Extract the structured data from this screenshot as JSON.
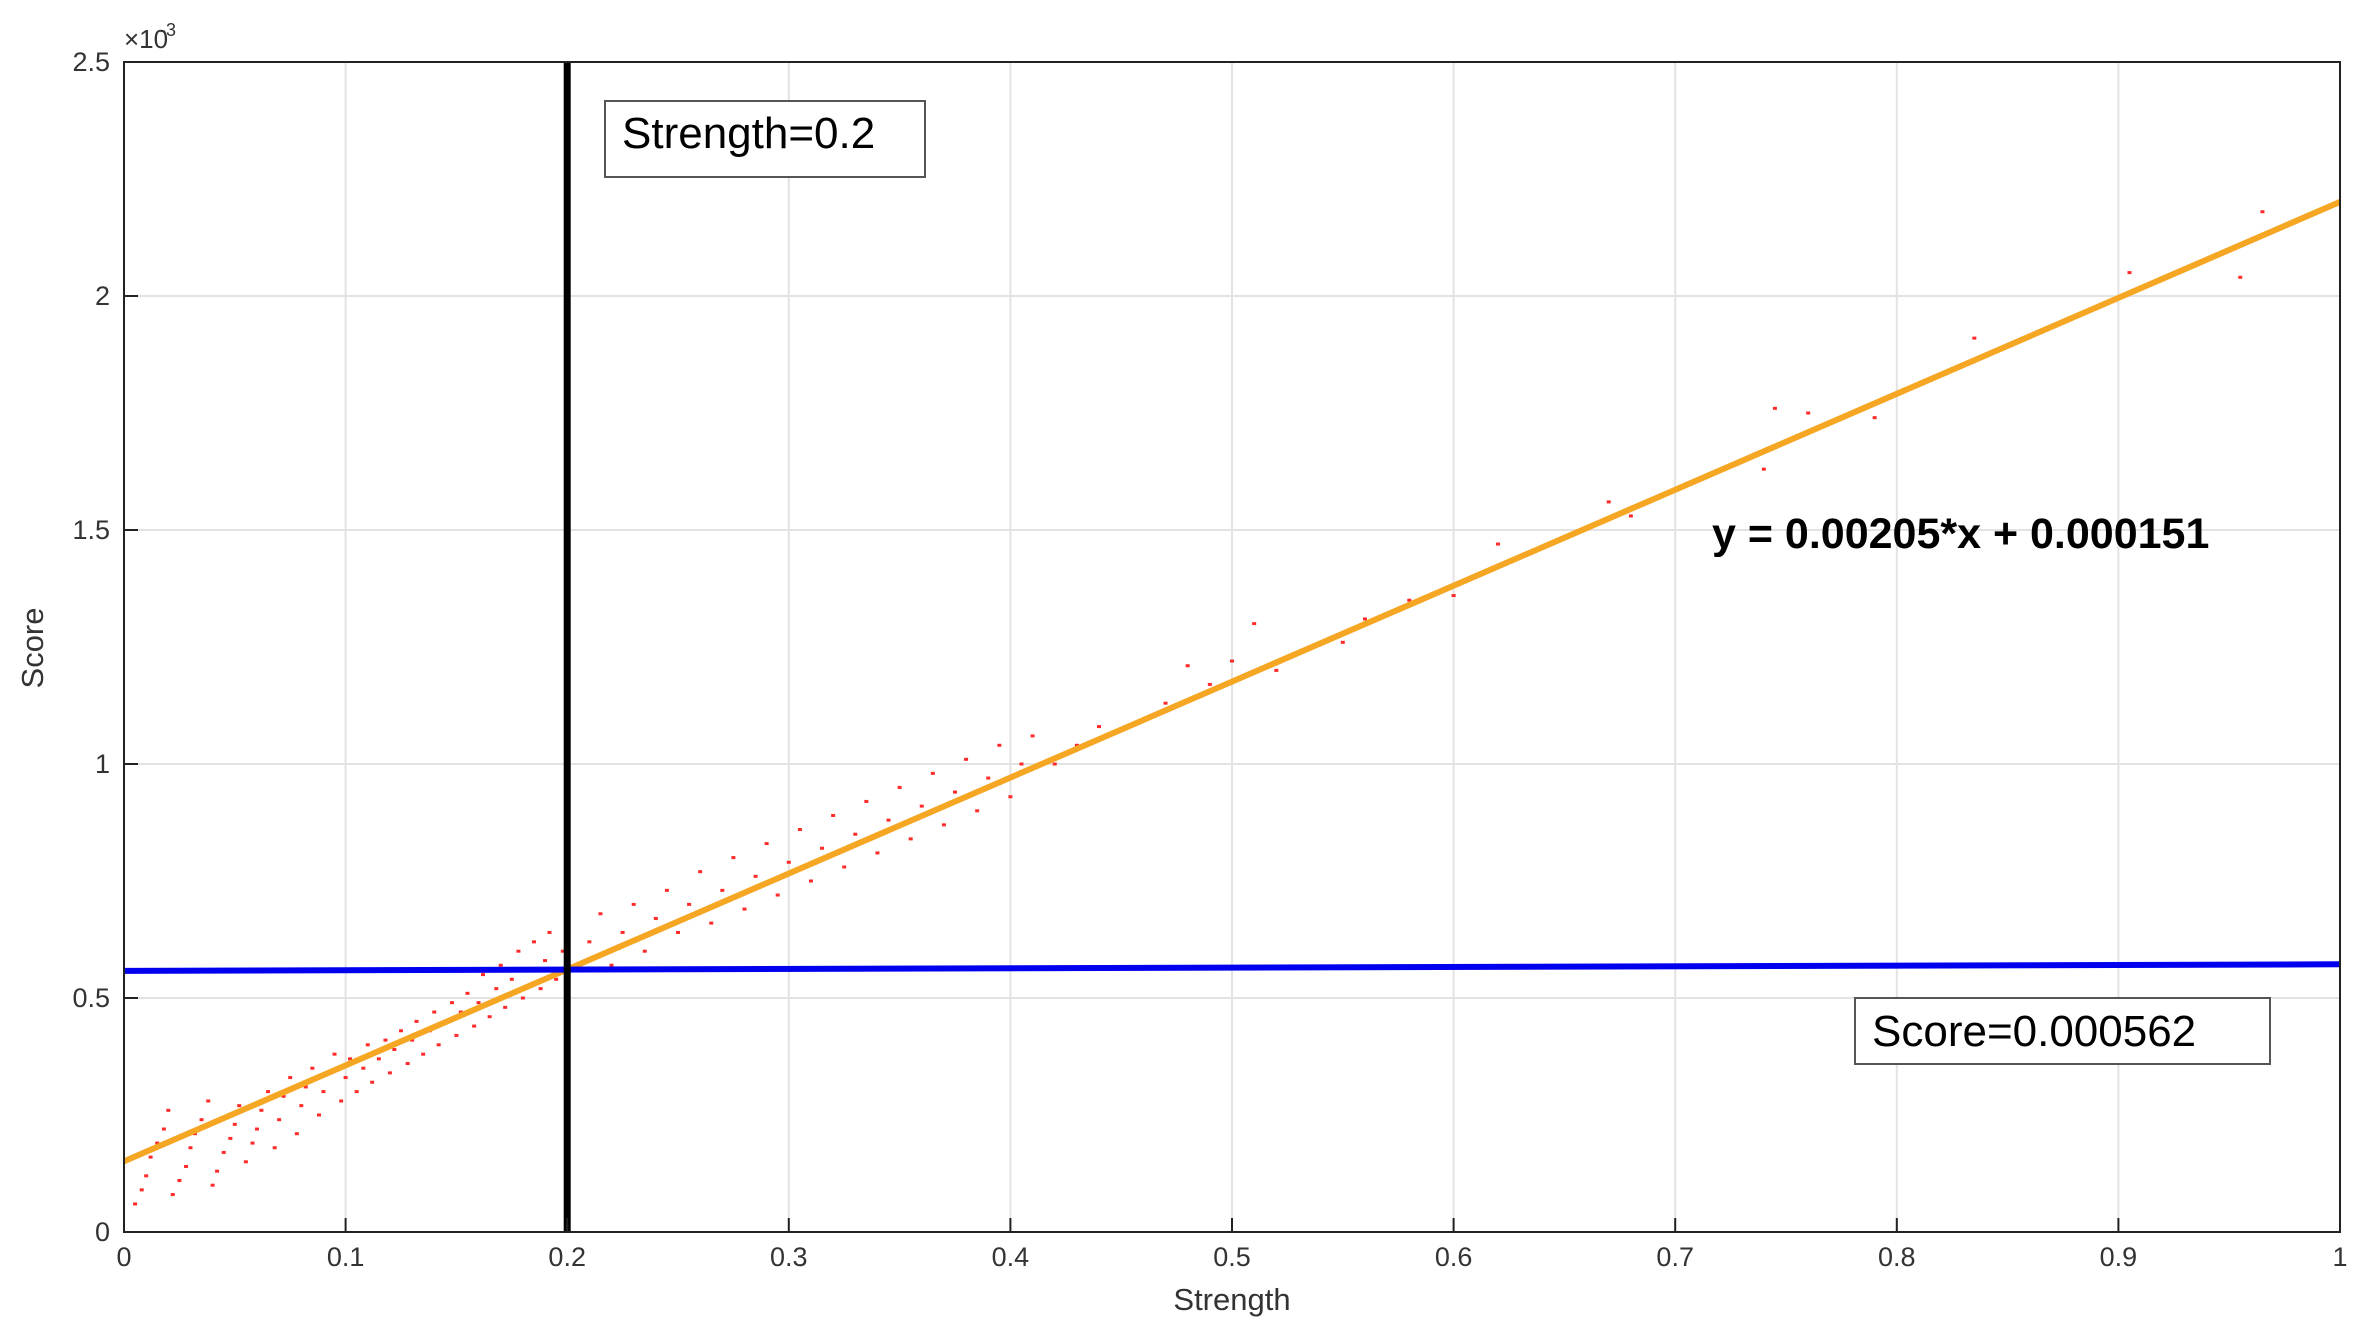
{
  "chart_data": {
    "type": "scatter",
    "title": "",
    "xlabel": "Strength",
    "ylabel": "Score",
    "xlim": [
      0,
      1
    ],
    "ylim": [
      0,
      0.0025
    ],
    "y_multiplier_label": "×10",
    "y_multiplier_exponent": "-3",
    "grid": true,
    "x_ticks": [
      0,
      0.1,
      0.2,
      0.3,
      0.4,
      0.5,
      0.6,
      0.7,
      0.8,
      0.9,
      1
    ],
    "x_tick_labels": [
      "0",
      "0.1",
      "0.2",
      "0.3",
      "0.4",
      "0.5",
      "0.6",
      "0.7",
      "0.8",
      "0.9",
      "1"
    ],
    "y_ticks": [
      0,
      0.0005,
      0.001,
      0.0015,
      0.002,
      0.0025
    ],
    "y_tick_labels": [
      "0",
      "0.5",
      "1",
      "1.5",
      "2",
      "2.5"
    ],
    "series": [
      {
        "kind": "points",
        "color": "#ff2a2a",
        "points": [
          [
            0.005,
            6e-05
          ],
          [
            0.008,
            9e-05
          ],
          [
            0.01,
            0.00012
          ],
          [
            0.012,
            0.00016
          ],
          [
            0.015,
            0.00019
          ],
          [
            0.018,
            0.00022
          ],
          [
            0.02,
            0.00026
          ],
          [
            0.022,
            8e-05
          ],
          [
            0.025,
            0.00011
          ],
          [
            0.028,
            0.00014
          ],
          [
            0.03,
            0.00018
          ],
          [
            0.032,
            0.00021
          ],
          [
            0.035,
            0.00024
          ],
          [
            0.038,
            0.00028
          ],
          [
            0.04,
            0.0001
          ],
          [
            0.042,
            0.00013
          ],
          [
            0.045,
            0.00017
          ],
          [
            0.048,
            0.0002
          ],
          [
            0.05,
            0.00023
          ],
          [
            0.052,
            0.00027
          ],
          [
            0.055,
            0.00015
          ],
          [
            0.058,
            0.00019
          ],
          [
            0.06,
            0.00022
          ],
          [
            0.062,
            0.00026
          ],
          [
            0.065,
            0.0003
          ],
          [
            0.068,
            0.00018
          ],
          [
            0.07,
            0.00024
          ],
          [
            0.072,
            0.00029
          ],
          [
            0.075,
            0.00033
          ],
          [
            0.078,
            0.00021
          ],
          [
            0.08,
            0.00027
          ],
          [
            0.082,
            0.00031
          ],
          [
            0.085,
            0.00035
          ],
          [
            0.088,
            0.00025
          ],
          [
            0.09,
            0.0003
          ],
          [
            0.092,
            0.00034
          ],
          [
            0.095,
            0.00038
          ],
          [
            0.098,
            0.00028
          ],
          [
            0.1,
            0.00033
          ],
          [
            0.102,
            0.00037
          ],
          [
            0.105,
            0.0003
          ],
          [
            0.108,
            0.00035
          ],
          [
            0.11,
            0.0004
          ],
          [
            0.112,
            0.00032
          ],
          [
            0.115,
            0.00037
          ],
          [
            0.118,
            0.00041
          ],
          [
            0.12,
            0.00034
          ],
          [
            0.122,
            0.00039
          ],
          [
            0.125,
            0.00043
          ],
          [
            0.128,
            0.00036
          ],
          [
            0.13,
            0.00041
          ],
          [
            0.132,
            0.00045
          ],
          [
            0.135,
            0.00038
          ],
          [
            0.138,
            0.00043
          ],
          [
            0.14,
            0.00047
          ],
          [
            0.142,
            0.0004
          ],
          [
            0.145,
            0.00045
          ],
          [
            0.148,
            0.00049
          ],
          [
            0.15,
            0.00042
          ],
          [
            0.152,
            0.00047
          ],
          [
            0.155,
            0.00051
          ],
          [
            0.158,
            0.00044
          ],
          [
            0.16,
            0.00049
          ],
          [
            0.162,
            0.00055
          ],
          [
            0.165,
            0.00046
          ],
          [
            0.168,
            0.00052
          ],
          [
            0.17,
            0.00057
          ],
          [
            0.172,
            0.00048
          ],
          [
            0.175,
            0.00054
          ],
          [
            0.178,
            0.0006
          ],
          [
            0.18,
            0.0005
          ],
          [
            0.182,
            0.00056
          ],
          [
            0.185,
            0.00062
          ],
          [
            0.188,
            0.00052
          ],
          [
            0.19,
            0.00058
          ],
          [
            0.192,
            0.00064
          ],
          [
            0.195,
            0.00054
          ],
          [
            0.198,
            0.0006
          ],
          [
            0.2,
            0.00066
          ],
          [
            0.205,
            0.00056
          ],
          [
            0.21,
            0.00062
          ],
          [
            0.215,
            0.00068
          ],
          [
            0.22,
            0.00057
          ],
          [
            0.225,
            0.00064
          ],
          [
            0.23,
            0.0007
          ],
          [
            0.235,
            0.0006
          ],
          [
            0.24,
            0.00067
          ],
          [
            0.245,
            0.00073
          ],
          [
            0.25,
            0.00064
          ],
          [
            0.255,
            0.0007
          ],
          [
            0.26,
            0.00077
          ],
          [
            0.265,
            0.00066
          ],
          [
            0.27,
            0.00073
          ],
          [
            0.275,
            0.0008
          ],
          [
            0.28,
            0.00069
          ],
          [
            0.285,
            0.00076
          ],
          [
            0.29,
            0.00083
          ],
          [
            0.295,
            0.00072
          ],
          [
            0.3,
            0.00079
          ],
          [
            0.305,
            0.00086
          ],
          [
            0.31,
            0.00075
          ],
          [
            0.315,
            0.00082
          ],
          [
            0.32,
            0.00089
          ],
          [
            0.325,
            0.00078
          ],
          [
            0.33,
            0.00085
          ],
          [
            0.335,
            0.00092
          ],
          [
            0.34,
            0.00081
          ],
          [
            0.345,
            0.00088
          ],
          [
            0.35,
            0.00095
          ],
          [
            0.355,
            0.00084
          ],
          [
            0.36,
            0.00091
          ],
          [
            0.365,
            0.00098
          ],
          [
            0.37,
            0.00087
          ],
          [
            0.375,
            0.00094
          ],
          [
            0.38,
            0.00101
          ],
          [
            0.385,
            0.0009
          ],
          [
            0.39,
            0.00097
          ],
          [
            0.395,
            0.00104
          ],
          [
            0.4,
            0.00093
          ],
          [
            0.405,
            0.001
          ],
          [
            0.41,
            0.00106
          ],
          [
            0.42,
            0.001
          ],
          [
            0.43,
            0.00104
          ],
          [
            0.44,
            0.00108
          ],
          [
            0.47,
            0.00113
          ],
          [
            0.48,
            0.00121
          ],
          [
            0.49,
            0.00117
          ],
          [
            0.5,
            0.00122
          ],
          [
            0.51,
            0.0013
          ],
          [
            0.52,
            0.0012
          ],
          [
            0.55,
            0.00126
          ],
          [
            0.56,
            0.00131
          ],
          [
            0.58,
            0.00135
          ],
          [
            0.6,
            0.00136
          ],
          [
            0.62,
            0.00147
          ],
          [
            0.67,
            0.00156
          ],
          [
            0.68,
            0.00153
          ],
          [
            0.74,
            0.00163
          ],
          [
            0.745,
            0.00176
          ],
          [
            0.76,
            0.00175
          ],
          [
            0.79,
            0.00174
          ],
          [
            0.835,
            0.00191
          ],
          [
            0.905,
            0.00205
          ],
          [
            0.955,
            0.00204
          ],
          [
            0.965,
            0.00218
          ]
        ]
      },
      {
        "kind": "line",
        "color": "#f5a623",
        "x": [
          0,
          1
        ],
        "y": [
          0.000151,
          0.002201
        ]
      },
      {
        "kind": "line",
        "color": "#0000ee",
        "x": [
          0,
          1
        ],
        "y": [
          0.000558,
          0.000572
        ]
      },
      {
        "kind": "line",
        "color": "#000000",
        "x": [
          0.2,
          0.2
        ],
        "y": [
          0,
          0.0025
        ]
      }
    ],
    "annotations": {
      "strength_box": "Strength=0.2",
      "score_box": "Score=0.000562",
      "equation": "y = 0.00205*x + 0.000151"
    }
  }
}
